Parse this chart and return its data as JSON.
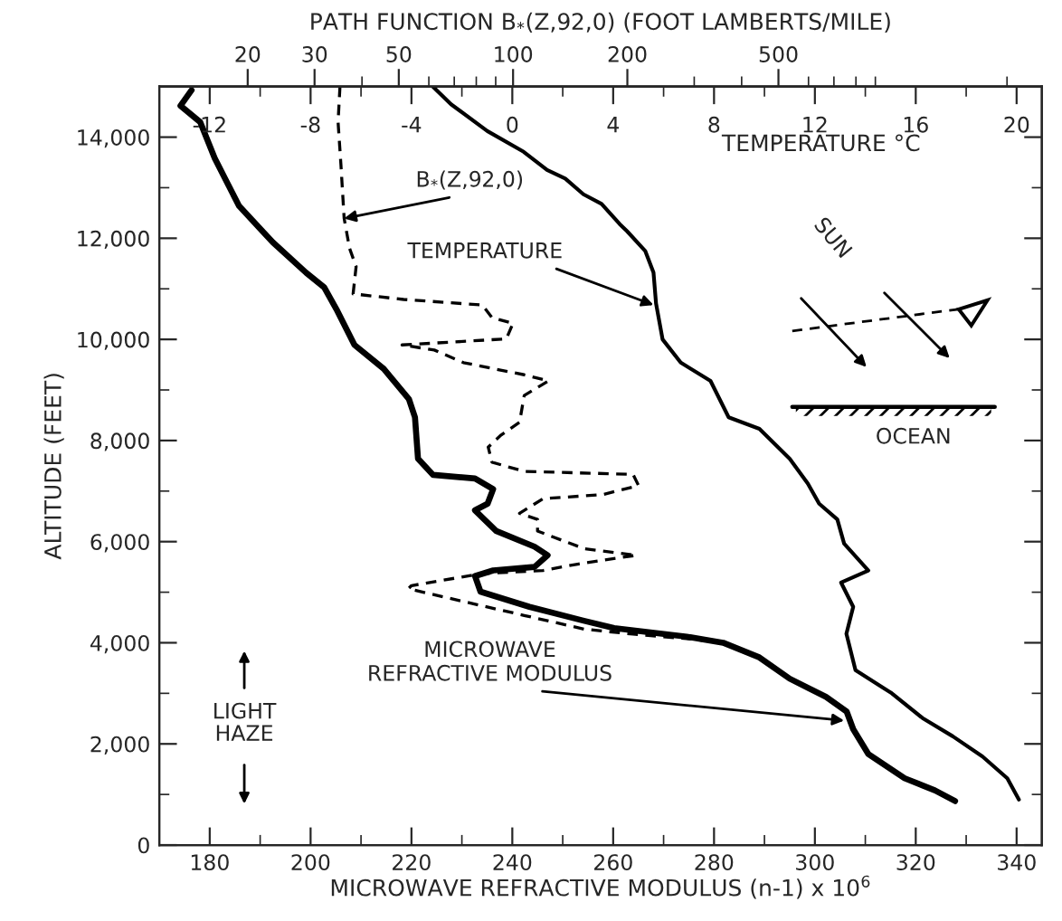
{
  "chart_data": [
    {
      "type": "line",
      "xlabel": "MICROWAVE REFRACTIVE MODULUS (n-1) x 10$^{6}$",
      "ylabel": "ALTITUDE (FEET)",
      "x2label": "TEMPERATURE °C",
      "xlim": [
        170,
        345
      ],
      "xticks": [
        180,
        200,
        220,
        240,
        260,
        280,
        300,
        320,
        340
      ],
      "x2lim": [
        -14,
        21
      ],
      "x2ticks": [
        {
          "value": -12,
          "label": "-12"
        },
        -8,
        -4,
        0,
        4,
        8,
        12,
        16,
        20
      ],
      "ylim": [
        0,
        15000
      ],
      "yticks": [
        0,
        {
          "value": 2000,
          "label": "2,000"
        },
        {
          "value": 4000,
          "label": "4,000"
        },
        {
          "value": 6000,
          "label": "6,000"
        },
        {
          "value": 8000,
          "label": "8,000"
        },
        {
          "value": 10000,
          "label": "10,000"
        },
        {
          "value": 12000,
          "label": "12,000"
        },
        {
          "value": 14000,
          "label": "14,000"
        }
      ],
      "series": [
        {
          "color": "#000000",
          "line_style": "solid",
          "x": [
            176.4,
            174.2,
            178.1,
            181.0,
            185.8,
            192.5,
            199.1,
            202.7,
            205.1,
            208.7,
            214.5,
            219.5,
            220.7,
            221.3,
            224.3,
            232.6,
            236.2,
            235.1,
            232.6,
            236.8,
            244.4,
            247.0,
            244.4,
            236.2,
            232.6,
            233.7,
            243.4,
            254.0,
            260.2,
            274.6,
            281.8,
            289.0,
            295.0,
            302.2,
            306.3,
            307.6,
            310.6,
            317.8,
            323.8,
            327.8
          ],
          "values": [
            14930,
            14620,
            14300,
            13580,
            12640,
            11920,
            11320,
            11030,
            10600,
            9890,
            9420,
            8820,
            8460,
            7640,
            7320,
            7250,
            7040,
            6750,
            6620,
            6210,
            5900,
            5730,
            5500,
            5430,
            5320,
            5010,
            4710,
            4440,
            4290,
            4120,
            4000,
            3710,
            3290,
            2930,
            2640,
            2290,
            1800,
            1320,
            1080,
            870
          ]
        },
        {
          "axis": "x2",
          "color": "#000000",
          "line_style": "solid",
          "x": [
            -3.15,
            -2.43,
            -0.99,
            0.45,
            1.38,
            2.1,
            2.82,
            3.54,
            4.26,
            4.55,
            5.27,
            5.6,
            5.7,
            5.96,
            6.68,
            7.86,
            8.58,
            9.8,
            11.0,
            11.72,
            12.17,
            12.89,
            13.16,
            14.12,
            13.04,
            13.52,
            13.25,
            13.61,
            15.05,
            16.27,
            17.47,
            18.65,
            19.63,
            20.09
          ],
          "values": [
            15000,
            14650,
            14120,
            13710,
            13350,
            13180,
            12870,
            12680,
            12280,
            12140,
            11750,
            11320,
            10710,
            10000,
            9540,
            9180,
            8460,
            8230,
            7640,
            7150,
            6750,
            6440,
            5960,
            5430,
            5190,
            4710,
            4180,
            3460,
            3000,
            2510,
            2150,
            1750,
            1320,
            900
          ]
        }
      ],
      "annotations": [
        {
          "text": "TEMPERATURE",
          "x": 268.0,
          "y": 10680
        },
        {
          "text": "MICROWAVE\nREFRACTIVE MODULUS",
          "x": 305.8,
          "y": 2460
        },
        "SUN",
        "OCEAN",
        "LIGHT\nHAZE"
      ]
    },
    {
      "type": "line",
      "xlabel": "PATH FUNCTION B$_{*}$(Z,92,0) (FOOT LAMBERTS/MILE)",
      "log": "x",
      "xlim": [
        11.7,
        2470
      ],
      "xticks": [
        20,
        30,
        50,
        100,
        200,
        500
      ],
      "ylim": [
        0,
        15000
      ],
      "tick_labels": "x",
      "series": [
        {
          "color": "#000000",
          "line_style": "dashed",
          "x": [
            35,
            34.6,
            35.2,
            35.9,
            37.1,
            38.6,
            37.9,
            51.5,
            83,
            88,
            100,
            96,
            51,
            62,
            74,
            107,
            124,
            107,
            104,
            93,
            86,
            88,
            107,
            207,
            214,
            172,
            120,
            104,
            116,
            116,
            154,
            211,
            149,
            120,
            83,
            54,
            53,
            62,
            107,
            154,
            207,
            298,
            321
          ],
          "values": [
            15000,
            14300,
            13460,
            12390,
            11800,
            11440,
            10900,
            10790,
            10680,
            10430,
            10320,
            10010,
            9890,
            9790,
            9540,
            9300,
            9180,
            8890,
            8360,
            8110,
            7870,
            7570,
            7390,
            7330,
            7110,
            6930,
            6850,
            6560,
            6440,
            6210,
            5860,
            5730,
            5560,
            5430,
            5370,
            5130,
            5070,
            4950,
            4540,
            4270,
            4170,
            4070,
            4040
          ]
        }
      ],
      "annotations": [
        {
          "text": "B$_{*}$(Z,92,0)",
          "x": 35.9,
          "y": 12390
        }
      ]
    }
  ]
}
